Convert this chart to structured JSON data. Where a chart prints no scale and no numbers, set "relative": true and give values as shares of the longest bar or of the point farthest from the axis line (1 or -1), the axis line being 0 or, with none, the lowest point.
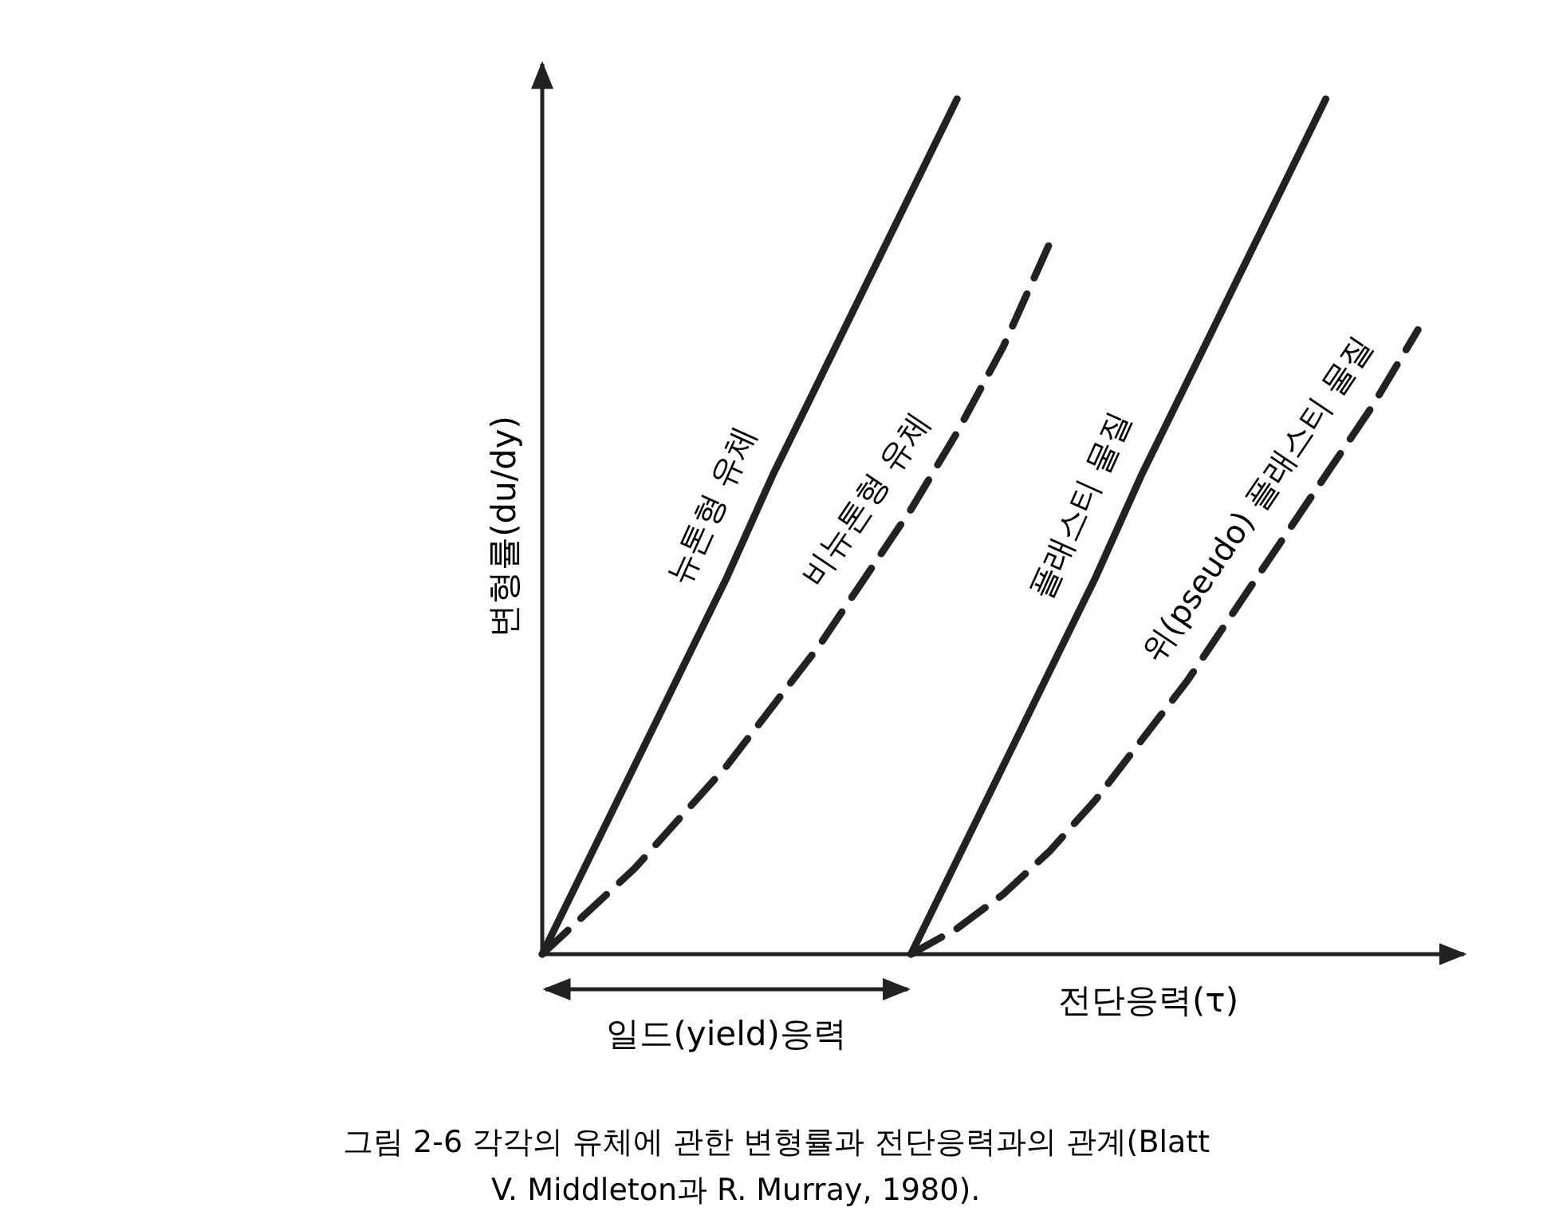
{
  "chart_data": {
    "type": "line",
    "relative": true,
    "xlabel": "전단응력(τ)",
    "ylabel": "변형률(du/dy)",
    "marker": "none",
    "categories": [
      null,
      null,
      null,
      null,
      null,
      null,
      null,
      null,
      null,
      null,
      null,
      null,
      null,
      null,
      null,
      null,
      null,
      null,
      null,
      null
    ],
    "series": [
      {
        "name": "뉴톤형 유체",
        "color": "#222222",
        "line_style": "solid",
        "values": [
          0,
          0.11,
          0.22,
          0.33,
          0.44,
          0.56,
          0.67,
          0.78,
          0.89,
          1,
          null,
          null,
          null,
          null,
          null,
          null,
          null,
          null,
          null,
          null
        ]
      },
      {
        "name": "비뉴톤형 유체",
        "color": "#222222",
        "line_style": "dashed",
        "values": [
          0,
          0.05,
          0.1,
          0.16,
          0.22,
          0.29,
          0.36,
          0.44,
          0.52,
          0.61,
          0.71,
          0.83,
          null,
          null,
          null,
          null,
          null,
          null,
          null,
          null
        ]
      },
      {
        "name": "플래스티 물질",
        "color": "#222222",
        "line_style": "solid",
        "values": [
          null,
          null,
          null,
          null,
          null,
          null,
          null,
          null,
          0,
          0.11,
          0.22,
          0.33,
          0.44,
          0.56,
          0.67,
          0.78,
          0.89,
          1,
          null,
          null
        ]
      },
      {
        "name": "위(pseudo) 플래스티 물질",
        "color": "#222222",
        "line_style": "dashed",
        "values": [
          null,
          null,
          null,
          null,
          null,
          null,
          null,
          null,
          0,
          0.03,
          0.07,
          0.12,
          0.18,
          0.25,
          0.32,
          0.4,
          0.48,
          0.56,
          0.64,
          0.73
        ]
      }
    ],
    "annotations": [
      "일드(yield)응력",
      "그림 2-6  각각의 유체에 관한 변형률과 전단응력과의 관계(Blatt",
      "V. Middleton과 R. Murray, 1980)."
    ]
  }
}
